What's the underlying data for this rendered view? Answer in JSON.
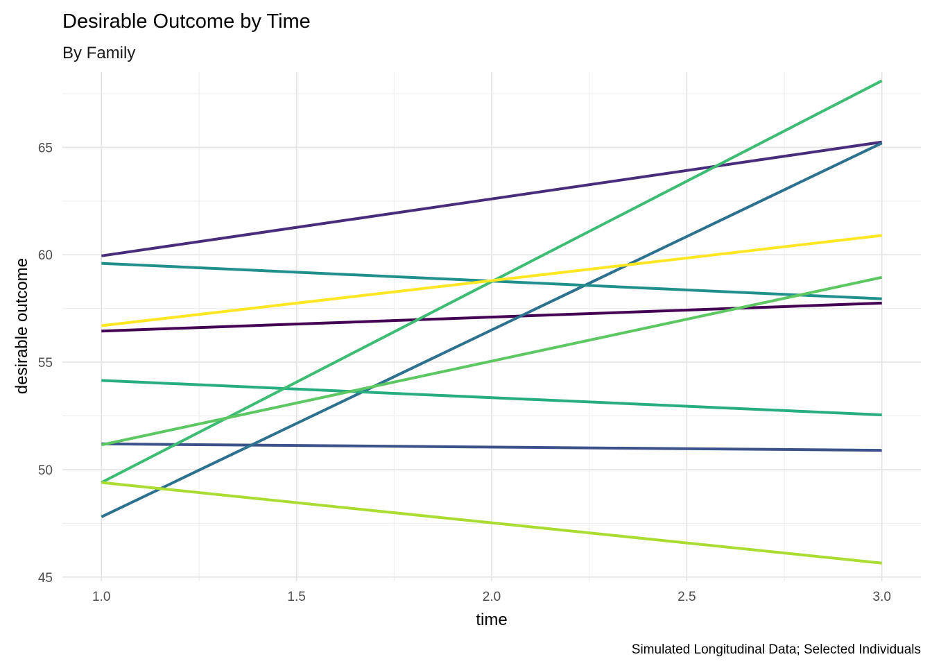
{
  "chart_data": {
    "type": "line",
    "title": "Desirable Outcome by Time",
    "subtitle": "By Family",
    "xlabel": "time",
    "ylabel": "desirable outcome",
    "caption": "Simulated Longitudinal Data; Selected Individuals",
    "xlim": [
      0.9,
      3.1
    ],
    "ylim": [
      44.8,
      68.5
    ],
    "x_ticks": [
      "1.0",
      "1.5",
      "2.0",
      "2.5",
      "3.0"
    ],
    "y_ticks": [
      "45",
      "50",
      "55",
      "60",
      "65"
    ],
    "grid": true,
    "legend": "none",
    "x": [
      1,
      3
    ],
    "series": [
      {
        "color": "#440154",
        "values": [
          56.45,
          57.75
        ]
      },
      {
        "color": "#472D7B",
        "values": [
          59.95,
          65.25
        ]
      },
      {
        "color": "#3B528B",
        "values": [
          51.2,
          50.9
        ]
      },
      {
        "color": "#2C728E",
        "values": [
          47.8,
          65.2
        ]
      },
      {
        "color": "#21908C",
        "values": [
          59.6,
          57.95
        ]
      },
      {
        "color": "#27AD81",
        "values": [
          54.15,
          52.55
        ]
      },
      {
        "color": "#3DBC74",
        "values": [
          49.4,
          68.1
        ]
      },
      {
        "color": "#5DC863",
        "values": [
          51.15,
          58.95
        ]
      },
      {
        "color": "#AADC32",
        "values": [
          49.4,
          45.65
        ]
      },
      {
        "color": "#FDE725",
        "values": [
          56.7,
          60.9
        ]
      }
    ]
  }
}
